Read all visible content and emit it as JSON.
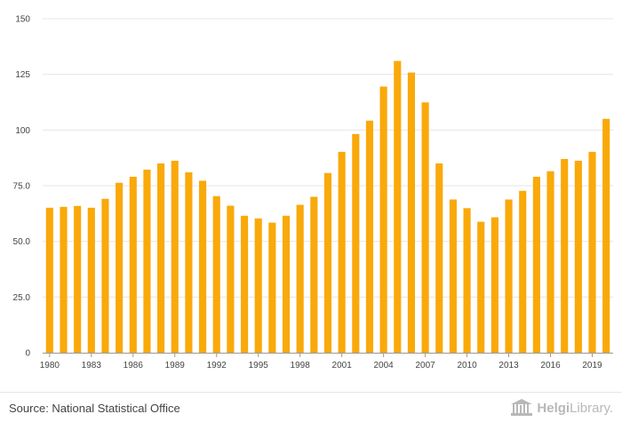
{
  "chart_data": {
    "type": "bar",
    "title": "",
    "xlabel": "",
    "ylabel": "",
    "ylim": [
      0,
      150
    ],
    "y_ticks": [
      0,
      25.0,
      50.0,
      75.0,
      100,
      125,
      150
    ],
    "y_tick_labels": [
      "0",
      "25.0",
      "50.0",
      "75.0",
      "100",
      "125",
      "150"
    ],
    "x_tick_labels": [
      "1980",
      "1983",
      "1986",
      "1989",
      "1992",
      "1995",
      "1998",
      "2001",
      "2004",
      "2007",
      "2010",
      "2013",
      "2016",
      "2019"
    ],
    "categories": [
      "1980",
      "1981",
      "1982",
      "1983",
      "1984",
      "1985",
      "1986",
      "1987",
      "1988",
      "1989",
      "1990",
      "1991",
      "1992",
      "1993",
      "1994",
      "1995",
      "1996",
      "1997",
      "1998",
      "1999",
      "2000",
      "2001",
      "2002",
      "2003",
      "2004",
      "2005",
      "2006",
      "2007",
      "2008",
      "2009",
      "2010",
      "2011",
      "2012",
      "2013",
      "2014",
      "2015",
      "2016",
      "2017",
      "2018",
      "2019",
      "2020"
    ],
    "values": [
      65.1,
      65.5,
      65.9,
      65.1,
      69.1,
      76.3,
      79.0,
      82.2,
      85.0,
      86.2,
      81.0,
      77.2,
      70.3,
      66.0,
      61.5,
      60.3,
      58.4,
      61.5,
      66.4,
      70.0,
      80.7,
      90.2,
      98.2,
      104.2,
      119.5,
      131.0,
      125.8,
      112.4,
      85.0,
      68.8,
      64.9,
      58.8,
      60.8,
      68.8,
      72.7,
      79.0,
      81.5,
      87.0,
      86.2,
      90.2,
      105.0
    ],
    "bar_color": "#f9a90a",
    "grid": true
  },
  "footer": {
    "source": "Source: National Statistical Office",
    "logo_part1": "Helgi",
    "logo_part2": "Library."
  }
}
